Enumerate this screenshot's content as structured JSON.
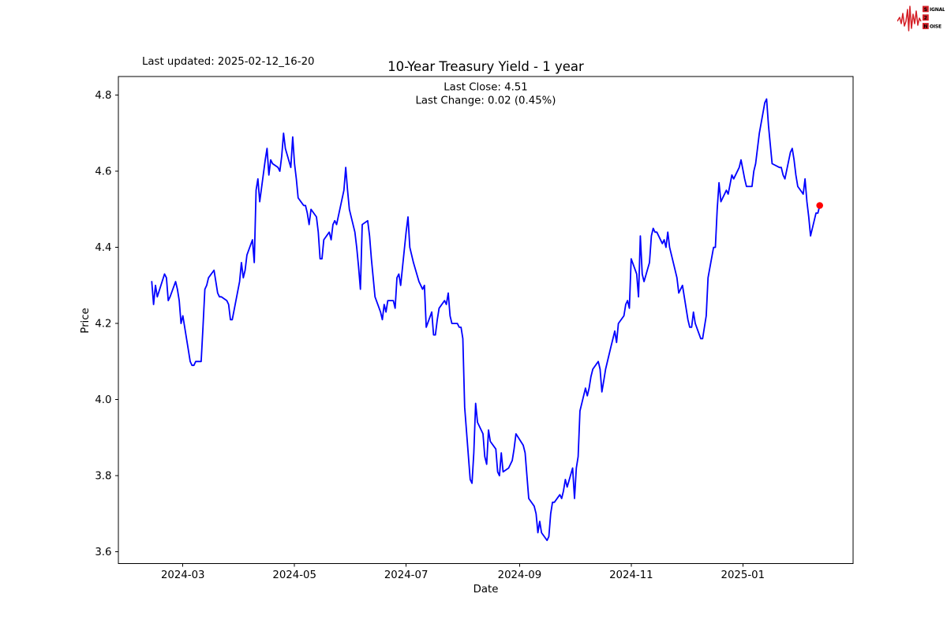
{
  "header": {
    "last_updated": "Last updated: 2025-02-12_16-20"
  },
  "logo": {
    "box_color": "#d41f26",
    "text_color": "#8a1113",
    "waveform_color": "#d41f26",
    "rows": [
      {
        "boxed": "S",
        "rest": "IGNAL"
      },
      {
        "boxed": "2",
        "rest": ""
      },
      {
        "boxed": "N",
        "rest": "OISE"
      }
    ]
  },
  "chart_data": {
    "type": "line",
    "title": "10-Year Treasury Yield - 1 year",
    "subtitle_line1": "Last Close: 4.51",
    "subtitle_line2": "Last Change: 0.02 (0.45%)",
    "xlabel": "Date",
    "ylabel": "Price",
    "legend": "none",
    "grid": false,
    "line_color": "#0000ff",
    "marker_color": "#ff0000",
    "last_close": 4.51,
    "last_change": 0.02,
    "last_change_pct": "0.45%",
    "x_ticks": [
      "2024-03",
      "2024-05",
      "2024-07",
      "2024-09",
      "2024-11",
      "2025-01"
    ],
    "y_ticks": [
      "3.6",
      "3.8",
      "4.0",
      "4.2",
      "4.4",
      "4.6",
      "4.8"
    ],
    "ylim": [
      3.569,
      4.849
    ],
    "points": [
      [
        "2024-02-13",
        4.31
      ],
      [
        "2024-02-14",
        4.25
      ],
      [
        "2024-02-15",
        4.3
      ],
      [
        "2024-02-16",
        4.27
      ],
      [
        "2024-02-20",
        4.33
      ],
      [
        "2024-02-21",
        4.32
      ],
      [
        "2024-02-22",
        4.26
      ],
      [
        "2024-02-23",
        4.27
      ],
      [
        "2024-02-26",
        4.31
      ],
      [
        "2024-02-27",
        4.29
      ],
      [
        "2024-02-28",
        4.26
      ],
      [
        "2024-02-29",
        4.2
      ],
      [
        "2024-03-01",
        4.22
      ],
      [
        "2024-03-04",
        4.13
      ],
      [
        "2024-03-05",
        4.1
      ],
      [
        "2024-03-06",
        4.09
      ],
      [
        "2024-03-07",
        4.09
      ],
      [
        "2024-03-08",
        4.1
      ],
      [
        "2024-03-11",
        4.1
      ],
      [
        "2024-03-12",
        4.19
      ],
      [
        "2024-03-13",
        4.29
      ],
      [
        "2024-03-14",
        4.3
      ],
      [
        "2024-03-15",
        4.32
      ],
      [
        "2024-03-18",
        4.34
      ],
      [
        "2024-03-19",
        4.31
      ],
      [
        "2024-03-20",
        4.28
      ],
      [
        "2024-03-21",
        4.27
      ],
      [
        "2024-03-22",
        4.27
      ],
      [
        "2024-03-25",
        4.26
      ],
      [
        "2024-03-26",
        4.25
      ],
      [
        "2024-03-27",
        4.21
      ],
      [
        "2024-03-28",
        4.21
      ],
      [
        "2024-04-01",
        4.31
      ],
      [
        "2024-04-02",
        4.36
      ],
      [
        "2024-04-03",
        4.32
      ],
      [
        "2024-04-04",
        4.34
      ],
      [
        "2024-04-05",
        4.38
      ],
      [
        "2024-04-08",
        4.42
      ],
      [
        "2024-04-09",
        4.36
      ],
      [
        "2024-04-10",
        4.55
      ],
      [
        "2024-04-11",
        4.58
      ],
      [
        "2024-04-12",
        4.52
      ],
      [
        "2024-04-15",
        4.63
      ],
      [
        "2024-04-16",
        4.66
      ],
      [
        "2024-04-17",
        4.59
      ],
      [
        "2024-04-18",
        4.63
      ],
      [
        "2024-04-19",
        4.62
      ],
      [
        "2024-04-22",
        4.61
      ],
      [
        "2024-04-23",
        4.6
      ],
      [
        "2024-04-24",
        4.64
      ],
      [
        "2024-04-25",
        4.7
      ],
      [
        "2024-04-26",
        4.66
      ],
      [
        "2024-04-29",
        4.61
      ],
      [
        "2024-04-30",
        4.69
      ],
      [
        "2024-05-01",
        4.62
      ],
      [
        "2024-05-02",
        4.58
      ],
      [
        "2024-05-03",
        4.53
      ],
      [
        "2024-05-06",
        4.51
      ],
      [
        "2024-05-07",
        4.51
      ],
      [
        "2024-05-08",
        4.49
      ],
      [
        "2024-05-09",
        4.46
      ],
      [
        "2024-05-10",
        4.5
      ],
      [
        "2024-05-13",
        4.48
      ],
      [
        "2024-05-14",
        4.44
      ],
      [
        "2024-05-15",
        4.37
      ],
      [
        "2024-05-16",
        4.37
      ],
      [
        "2024-05-17",
        4.42
      ],
      [
        "2024-05-20",
        4.44
      ],
      [
        "2024-05-21",
        4.42
      ],
      [
        "2024-05-22",
        4.46
      ],
      [
        "2024-05-23",
        4.47
      ],
      [
        "2024-05-24",
        4.46
      ],
      [
        "2024-05-28",
        4.55
      ],
      [
        "2024-05-29",
        4.61
      ],
      [
        "2024-05-30",
        4.55
      ],
      [
        "2024-05-31",
        4.5
      ],
      [
        "2024-06-03",
        4.44
      ],
      [
        "2024-06-04",
        4.4
      ],
      [
        "2024-06-05",
        4.35
      ],
      [
        "2024-06-06",
        4.29
      ],
      [
        "2024-06-07",
        4.46
      ],
      [
        "2024-06-10",
        4.47
      ],
      [
        "2024-06-11",
        4.43
      ],
      [
        "2024-06-12",
        4.37
      ],
      [
        "2024-06-13",
        4.32
      ],
      [
        "2024-06-14",
        4.27
      ],
      [
        "2024-06-17",
        4.23
      ],
      [
        "2024-06-18",
        4.21
      ],
      [
        "2024-06-19",
        4.25
      ],
      [
        "2024-06-20",
        4.23
      ],
      [
        "2024-06-21",
        4.26
      ],
      [
        "2024-06-24",
        4.26
      ],
      [
        "2024-06-25",
        4.24
      ],
      [
        "2024-06-26",
        4.32
      ],
      [
        "2024-06-27",
        4.33
      ],
      [
        "2024-06-28",
        4.3
      ],
      [
        "2024-07-01",
        4.44
      ],
      [
        "2024-07-02",
        4.48
      ],
      [
        "2024-07-03",
        4.4
      ],
      [
        "2024-07-05",
        4.36
      ],
      [
        "2024-07-08",
        4.31
      ],
      [
        "2024-07-09",
        4.3
      ],
      [
        "2024-07-10",
        4.29
      ],
      [
        "2024-07-11",
        4.3
      ],
      [
        "2024-07-12",
        4.19
      ],
      [
        "2024-07-15",
        4.23
      ],
      [
        "2024-07-16",
        4.17
      ],
      [
        "2024-07-17",
        4.17
      ],
      [
        "2024-07-18",
        4.21
      ],
      [
        "2024-07-19",
        4.24
      ],
      [
        "2024-07-22",
        4.26
      ],
      [
        "2024-07-23",
        4.25
      ],
      [
        "2024-07-24",
        4.28
      ],
      [
        "2024-07-25",
        4.22
      ],
      [
        "2024-07-26",
        4.2
      ],
      [
        "2024-07-29",
        4.2
      ],
      [
        "2024-07-30",
        4.19
      ],
      [
        "2024-07-31",
        4.19
      ],
      [
        "2024-08-01",
        4.16
      ],
      [
        "2024-08-02",
        3.98
      ],
      [
        "2024-08-05",
        3.79
      ],
      [
        "2024-08-06",
        3.78
      ],
      [
        "2024-08-07",
        3.86
      ],
      [
        "2024-08-08",
        3.99
      ],
      [
        "2024-08-09",
        3.94
      ],
      [
        "2024-08-12",
        3.91
      ],
      [
        "2024-08-13",
        3.85
      ],
      [
        "2024-08-14",
        3.83
      ],
      [
        "2024-08-15",
        3.92
      ],
      [
        "2024-08-16",
        3.89
      ],
      [
        "2024-08-19",
        3.87
      ],
      [
        "2024-08-20",
        3.81
      ],
      [
        "2024-08-21",
        3.8
      ],
      [
        "2024-08-22",
        3.86
      ],
      [
        "2024-08-23",
        3.81
      ],
      [
        "2024-08-26",
        3.82
      ],
      [
        "2024-08-27",
        3.83
      ],
      [
        "2024-08-28",
        3.84
      ],
      [
        "2024-08-29",
        3.87
      ],
      [
        "2024-08-30",
        3.91
      ],
      [
        "2024-09-03",
        3.88
      ],
      [
        "2024-09-04",
        3.86
      ],
      [
        "2024-09-05",
        3.8
      ],
      [
        "2024-09-06",
        3.74
      ],
      [
        "2024-09-09",
        3.72
      ],
      [
        "2024-09-10",
        3.7
      ],
      [
        "2024-09-11",
        3.65
      ],
      [
        "2024-09-12",
        3.68
      ],
      [
        "2024-09-13",
        3.65
      ],
      [
        "2024-09-16",
        3.63
      ],
      [
        "2024-09-17",
        3.64
      ],
      [
        "2024-09-18",
        3.7
      ],
      [
        "2024-09-19",
        3.73
      ],
      [
        "2024-09-20",
        3.73
      ],
      [
        "2024-09-23",
        3.75
      ],
      [
        "2024-09-24",
        3.74
      ],
      [
        "2024-09-25",
        3.76
      ],
      [
        "2024-09-26",
        3.79
      ],
      [
        "2024-09-27",
        3.77
      ],
      [
        "2024-09-30",
        3.82
      ],
      [
        "2024-10-01",
        3.74
      ],
      [
        "2024-10-02",
        3.82
      ],
      [
        "2024-10-03",
        3.85
      ],
      [
        "2024-10-04",
        3.97
      ],
      [
        "2024-10-07",
        4.03
      ],
      [
        "2024-10-08",
        4.01
      ],
      [
        "2024-10-09",
        4.03
      ],
      [
        "2024-10-10",
        4.06
      ],
      [
        "2024-10-11",
        4.08
      ],
      [
        "2024-10-14",
        4.1
      ],
      [
        "2024-10-15",
        4.08
      ],
      [
        "2024-10-16",
        4.02
      ],
      [
        "2024-10-17",
        4.05
      ],
      [
        "2024-10-18",
        4.08
      ],
      [
        "2024-10-21",
        4.14
      ],
      [
        "2024-10-22",
        4.16
      ],
      [
        "2024-10-23",
        4.18
      ],
      [
        "2024-10-24",
        4.15
      ],
      [
        "2024-10-25",
        4.2
      ],
      [
        "2024-10-28",
        4.22
      ],
      [
        "2024-10-29",
        4.25
      ],
      [
        "2024-10-30",
        4.26
      ],
      [
        "2024-10-31",
        4.24
      ],
      [
        "2024-11-01",
        4.37
      ],
      [
        "2024-11-04",
        4.33
      ],
      [
        "2024-11-05",
        4.27
      ],
      [
        "2024-11-06",
        4.43
      ],
      [
        "2024-11-07",
        4.33
      ],
      [
        "2024-11-08",
        4.31
      ],
      [
        "2024-11-11",
        4.36
      ],
      [
        "2024-11-12",
        4.43
      ],
      [
        "2024-11-13",
        4.45
      ],
      [
        "2024-11-14",
        4.44
      ],
      [
        "2024-11-15",
        4.44
      ],
      [
        "2024-11-18",
        4.41
      ],
      [
        "2024-11-19",
        4.42
      ],
      [
        "2024-11-20",
        4.4
      ],
      [
        "2024-11-21",
        4.44
      ],
      [
        "2024-11-22",
        4.4
      ],
      [
        "2024-11-25",
        4.34
      ],
      [
        "2024-11-26",
        4.32
      ],
      [
        "2024-11-27",
        4.28
      ],
      [
        "2024-11-29",
        4.3
      ],
      [
        "2024-12-02",
        4.21
      ],
      [
        "2024-12-03",
        4.19
      ],
      [
        "2024-12-04",
        4.19
      ],
      [
        "2024-12-05",
        4.23
      ],
      [
        "2024-12-06",
        4.2
      ],
      [
        "2024-12-09",
        4.16
      ],
      [
        "2024-12-10",
        4.16
      ],
      [
        "2024-12-11",
        4.19
      ],
      [
        "2024-12-12",
        4.22
      ],
      [
        "2024-12-13",
        4.32
      ],
      [
        "2024-12-16",
        4.4
      ],
      [
        "2024-12-17",
        4.4
      ],
      [
        "2024-12-18",
        4.5
      ],
      [
        "2024-12-19",
        4.57
      ],
      [
        "2024-12-20",
        4.52
      ],
      [
        "2024-12-23",
        4.55
      ],
      [
        "2024-12-24",
        4.54
      ],
      [
        "2024-12-26",
        4.59
      ],
      [
        "2024-12-27",
        4.58
      ],
      [
        "2024-12-30",
        4.61
      ],
      [
        "2024-12-31",
        4.63
      ],
      [
        "2025-01-02",
        4.58
      ],
      [
        "2025-01-03",
        4.56
      ],
      [
        "2025-01-06",
        4.56
      ],
      [
        "2025-01-07",
        4.6
      ],
      [
        "2025-01-08",
        4.62
      ],
      [
        "2025-01-10",
        4.7
      ],
      [
        "2025-01-13",
        4.78
      ],
      [
        "2025-01-14",
        4.79
      ],
      [
        "2025-01-15",
        4.72
      ],
      [
        "2025-01-16",
        4.67
      ],
      [
        "2025-01-17",
        4.62
      ],
      [
        "2025-01-21",
        4.61
      ],
      [
        "2025-01-22",
        4.61
      ],
      [
        "2025-01-23",
        4.59
      ],
      [
        "2025-01-24",
        4.58
      ],
      [
        "2025-01-27",
        4.65
      ],
      [
        "2025-01-28",
        4.66
      ],
      [
        "2025-01-29",
        4.63
      ],
      [
        "2025-01-30",
        4.59
      ],
      [
        "2025-01-31",
        4.56
      ],
      [
        "2025-02-03",
        4.54
      ],
      [
        "2025-02-04",
        4.58
      ],
      [
        "2025-02-05",
        4.52
      ],
      [
        "2025-02-06",
        4.48
      ],
      [
        "2025-02-07",
        4.43
      ],
      [
        "2025-02-10",
        4.49
      ],
      [
        "2025-02-11",
        4.49
      ],
      [
        "2025-02-12",
        4.51
      ]
    ]
  }
}
